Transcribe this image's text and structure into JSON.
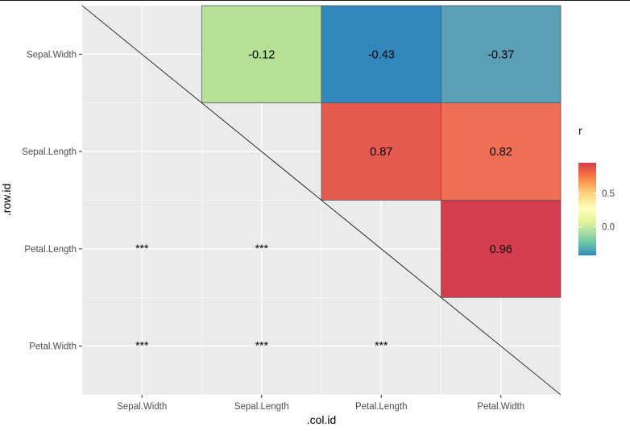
{
  "chart_data": {
    "type": "heatmap",
    "title": "",
    "xlabel": ".col.id",
    "ylabel": ".row.id",
    "x_categories": [
      "Sepal.Width",
      "Sepal.Length",
      "Petal.Length",
      "Petal.Width"
    ],
    "y_categories": [
      "Sepal.Width",
      "Sepal.Length",
      "Petal.Length",
      "Petal.Width"
    ],
    "cells": [
      {
        "row": "Sepal.Width",
        "col": "Sepal.Length",
        "value": -0.12,
        "label": "-0.12",
        "color": "#b5e095"
      },
      {
        "row": "Sepal.Width",
        "col": "Petal.Length",
        "value": -0.43,
        "label": "-0.43",
        "color": "#3288bd"
      },
      {
        "row": "Sepal.Width",
        "col": "Petal.Width",
        "value": -0.37,
        "label": "-0.37",
        "color": "#5b9fb7"
      },
      {
        "row": "Sepal.Length",
        "col": "Petal.Length",
        "value": 0.87,
        "label": "0.87",
        "color": "#e5594e"
      },
      {
        "row": "Sepal.Length",
        "col": "Petal.Width",
        "value": 0.82,
        "label": "0.82",
        "color": "#ef6f55"
      },
      {
        "row": "Petal.Length",
        "col": "Petal.Width",
        "value": 0.96,
        "label": "0.96",
        "color": "#d53e4f"
      }
    ],
    "significance": [
      {
        "row": "Petal.Length",
        "col": "Sepal.Width",
        "label": "***"
      },
      {
        "row": "Petal.Length",
        "col": "Sepal.Length",
        "label": "***"
      },
      {
        "row": "Petal.Width",
        "col": "Sepal.Width",
        "label": "***"
      },
      {
        "row": "Petal.Width",
        "col": "Sepal.Length",
        "label": "***"
      },
      {
        "row": "Petal.Width",
        "col": "Petal.Length",
        "label": "***"
      }
    ],
    "diagonal_line": true,
    "grid": true,
    "panel_background": "#ebebeb",
    "legend": {
      "title": "r",
      "placement": "right",
      "range": [
        -0.43,
        0.96
      ],
      "ticks": [
        {
          "value": 0.0,
          "label": "0.0"
        },
        {
          "value": 0.5,
          "label": "0.5"
        }
      ],
      "colors": [
        "#3288bd",
        "#66c2a5",
        "#abdda4",
        "#e6f598",
        "#ffffbf",
        "#fee08b",
        "#fdae61",
        "#f46d43",
        "#d53e4f"
      ]
    }
  }
}
